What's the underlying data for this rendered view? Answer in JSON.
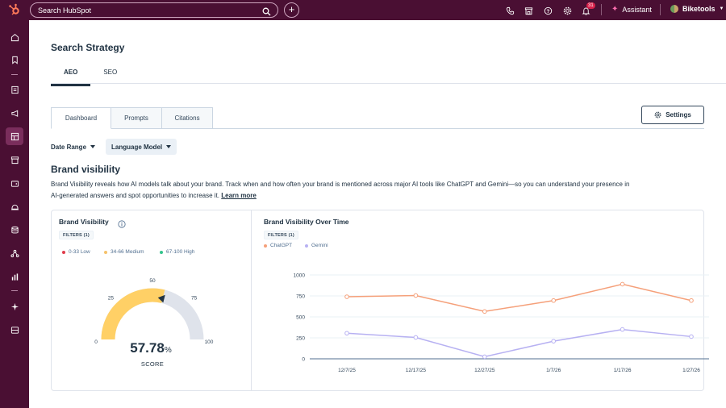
{
  "topbar": {
    "search_placeholder": "Search HubSpot",
    "notification_count": "31",
    "assistant_label": "Assistant",
    "account_name": "Biketools"
  },
  "page": {
    "title": "Search Strategy",
    "tabs": [
      "AEO",
      "SEO"
    ],
    "active_tab": "AEO"
  },
  "subtabs": {
    "items": [
      "Dashboard",
      "Prompts",
      "Citations"
    ],
    "active": "Dashboard",
    "settings_label": "Settings"
  },
  "filters": {
    "date_range": "Date Range",
    "language_model": "Language Model"
  },
  "section": {
    "title": "Brand visibility",
    "description": "Brand Visibility reveals how AI models talk about your brand. Track when and how often your brand is mentioned across major AI tools like ChatGPT and Gemini—so you can understand your presence in AI-generated answers and spot opportunities to increase it.",
    "learn_more": "Learn more"
  },
  "gauge_card": {
    "title": "Brand Visibility",
    "filters_label": "FILTERS (1)",
    "legend": [
      {
        "label": "0-33 Low",
        "color": "#e03c4b"
      },
      {
        "label": "34-66 Medium",
        "color": "#f5c26b"
      },
      {
        "label": "67-100 High",
        "color": "#33c48d"
      }
    ],
    "score": 57.78,
    "score_text": "57.78",
    "score_unit": "%",
    "score_label": "SCORE",
    "ticks": [
      "0",
      "25",
      "50",
      "75",
      "100"
    ],
    "fill_color": "#ffd066",
    "track_color": "#dfe3eb"
  },
  "chart_card": {
    "title": "Brand Visibility Over Time",
    "filters_label": "FILTERS (1)"
  },
  "chart_data": {
    "type": "line",
    "title": "Brand Visibility Over Time",
    "x": [
      "12/7/25",
      "12/17/25",
      "12/27/25",
      "1/7/26",
      "1/17/26",
      "1/27/26"
    ],
    "series": [
      {
        "name": "ChatGPT",
        "color": "#f5a07a",
        "values": [
          740,
          755,
          565,
          695,
          890,
          695
        ]
      },
      {
        "name": "Gemini",
        "color": "#b7b1f2",
        "values": [
          305,
          255,
          25,
          210,
          350,
          265
        ]
      }
    ],
    "y_ticks": [
      0,
      250,
      500,
      750,
      1000
    ],
    "ylim": [
      0,
      1000
    ],
    "grid": true,
    "legend_position": "top-left"
  }
}
